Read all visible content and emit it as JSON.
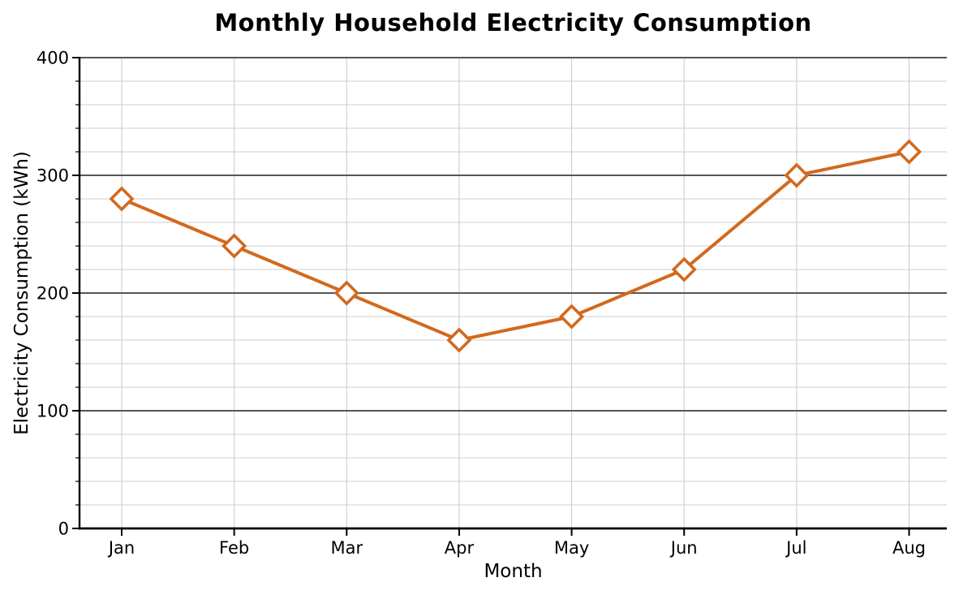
{
  "chart_data": {
    "type": "line",
    "title": "Monthly Household Electricity Consumption",
    "xlabel": "Month",
    "ylabel": "Electricity Consumption (kWh)",
    "categories": [
      "Jan",
      "Feb",
      "Mar",
      "Apr",
      "May",
      "Jun",
      "Jul",
      "Aug"
    ],
    "values": [
      280,
      240,
      200,
      160,
      180,
      220,
      300,
      320
    ],
    "ylim": [
      0,
      400
    ],
    "yticks": [
      0,
      100,
      200,
      300,
      400
    ],
    "y_minor_step": 20,
    "grid": true,
    "legend": "none",
    "line_color": "#D2691E",
    "marker": "diamond",
    "marker_fill": "#FFFFFF",
    "major_grid_color": "#565656",
    "minor_grid_color": "#CDCDCD",
    "spine_color": "#000000"
  }
}
